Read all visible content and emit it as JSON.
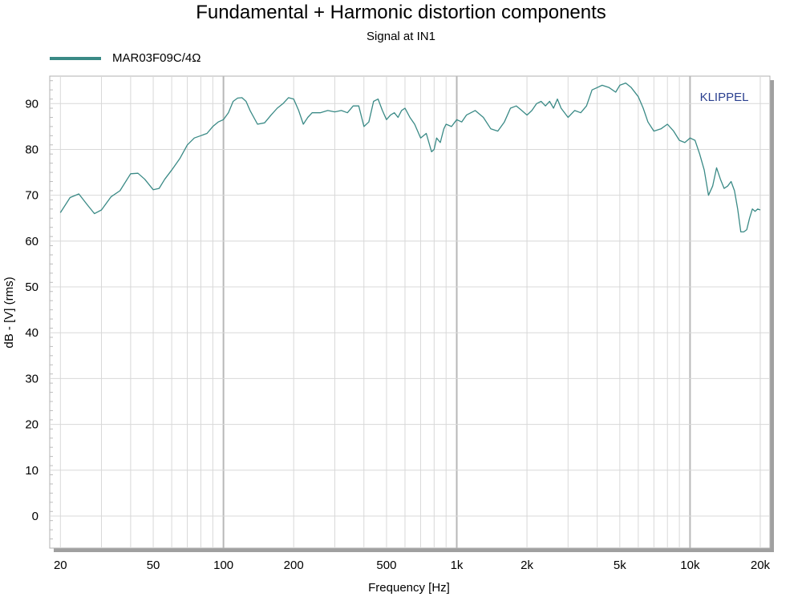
{
  "chart_data": {
    "type": "line",
    "title": "Fundamental + Harmonic distortion components",
    "subtitle": "Signal at IN1",
    "xlabel": "Frequency [Hz]",
    "ylabel": "dB - [V]  (rms)",
    "xscale": "log",
    "xlim": [
      18,
      22000
    ],
    "ylim": [
      -7,
      96
    ],
    "grid": true,
    "watermark": "KLIPPEL",
    "x_ticks": [
      {
        "value": 20,
        "label": "20"
      },
      {
        "value": 50,
        "label": "50"
      },
      {
        "value": 100,
        "label": "100"
      },
      {
        "value": 200,
        "label": "200"
      },
      {
        "value": 500,
        "label": "500"
      },
      {
        "value": 1000,
        "label": "1k"
      },
      {
        "value": 2000,
        "label": "2k"
      },
      {
        "value": 5000,
        "label": "5k"
      },
      {
        "value": 10000,
        "label": "10k"
      },
      {
        "value": 20000,
        "label": "20k"
      }
    ],
    "y_ticks": [
      0,
      10,
      20,
      30,
      40,
      50,
      60,
      70,
      80,
      90
    ],
    "series": [
      {
        "name": "MAR03F09C/4Ω",
        "color": "#3a8a86",
        "x": [
          20,
          22,
          24,
          26,
          28,
          30,
          33,
          36,
          40,
          43,
          46,
          50,
          53,
          56,
          60,
          65,
          70,
          75,
          80,
          85,
          90,
          95,
          100,
          105,
          110,
          115,
          120,
          125,
          130,
          140,
          150,
          160,
          170,
          180,
          190,
          200,
          210,
          220,
          230,
          240,
          260,
          280,
          300,
          320,
          340,
          360,
          380,
          400,
          420,
          440,
          460,
          480,
          500,
          520,
          540,
          560,
          580,
          600,
          630,
          660,
          700,
          740,
          780,
          800,
          820,
          850,
          880,
          900,
          950,
          1000,
          1050,
          1100,
          1200,
          1300,
          1400,
          1500,
          1600,
          1700,
          1800,
          1900,
          2000,
          2100,
          2200,
          2300,
          2400,
          2500,
          2600,
          2700,
          2800,
          3000,
          3200,
          3400,
          3600,
          3800,
          4000,
          4200,
          4500,
          4800,
          5000,
          5300,
          5600,
          6000,
          6300,
          6600,
          7000,
          7500,
          8000,
          8500,
          9000,
          9500,
          10000,
          10500,
          11000,
          11500,
          12000,
          12500,
          13000,
          13500,
          14000,
          14500,
          15000,
          15500,
          16000,
          16500,
          17000,
          17500,
          18000,
          18500,
          19000,
          19500,
          20000
        ],
        "values": [
          66.2,
          69.5,
          70.3,
          68.0,
          66.0,
          66.8,
          69.7,
          71.0,
          74.7,
          74.8,
          73.5,
          71.2,
          71.5,
          73.5,
          75.5,
          78.0,
          81.0,
          82.5,
          83.0,
          83.5,
          85.0,
          86.0,
          86.5,
          88.0,
          90.5,
          91.2,
          91.3,
          90.5,
          88.5,
          85.5,
          85.8,
          87.5,
          89.0,
          90.0,
          91.3,
          91.0,
          88.5,
          85.5,
          87.0,
          88.0,
          88.0,
          88.5,
          88.2,
          88.5,
          88.0,
          89.5,
          89.5,
          85.0,
          86.0,
          90.5,
          91.0,
          88.5,
          86.5,
          87.5,
          88.0,
          87.0,
          88.5,
          89.0,
          87.0,
          85.5,
          82.5,
          83.5,
          79.5,
          80.0,
          82.5,
          81.5,
          84.5,
          85.5,
          85.0,
          86.5,
          86.0,
          87.5,
          88.5,
          87.0,
          84.5,
          84.0,
          86.0,
          89.0,
          89.5,
          88.5,
          87.5,
          88.5,
          90.0,
          90.5,
          89.5,
          90.5,
          89.0,
          91.0,
          89.0,
          87.0,
          88.5,
          88.0,
          89.5,
          93.0,
          93.5,
          94.0,
          93.5,
          92.5,
          94.0,
          94.5,
          93.5,
          91.5,
          89.0,
          86.0,
          84.0,
          84.5,
          85.5,
          84.0,
          82.0,
          81.5,
          82.5,
          82.0,
          79.0,
          75.5,
          70.0,
          72.0,
          76.0,
          73.5,
          71.5,
          72.0,
          73.0,
          71.0,
          67.0,
          62.0,
          62.0,
          62.5,
          65.0,
          67.0,
          66.5,
          67.0,
          66.8
        ]
      }
    ]
  }
}
